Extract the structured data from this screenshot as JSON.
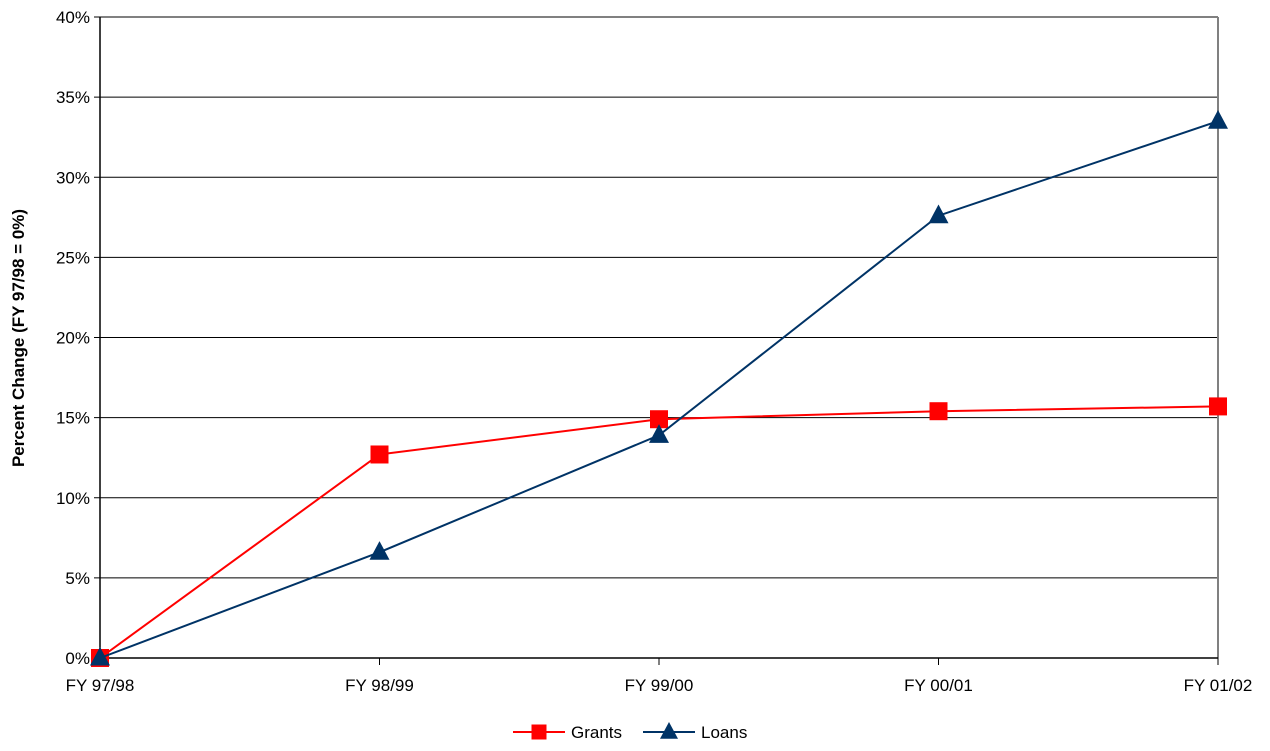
{
  "chart_data": {
    "type": "line",
    "title": "",
    "xlabel": "",
    "ylabel": "Percent Change (FY 97/98 = 0%)",
    "categories": [
      "FY 97/98",
      "FY 98/99",
      "FY 99/00",
      "FY 00/01",
      "FY 01/02"
    ],
    "ylim": [
      0,
      40
    ],
    "yticks": [
      "0%",
      "5%",
      "10%",
      "15%",
      "20%",
      "25%",
      "30%",
      "35%",
      "40%"
    ],
    "grid": true,
    "legend_position": "bottom",
    "series": [
      {
        "name": "Grants",
        "values": [
          0,
          12.7,
          14.9,
          15.4,
          15.7
        ],
        "color": "#ff0000",
        "marker": "square"
      },
      {
        "name": "Loans",
        "values": [
          0,
          6.6,
          13.9,
          27.6,
          33.5
        ],
        "color": "#003366",
        "marker": "triangle"
      }
    ]
  }
}
